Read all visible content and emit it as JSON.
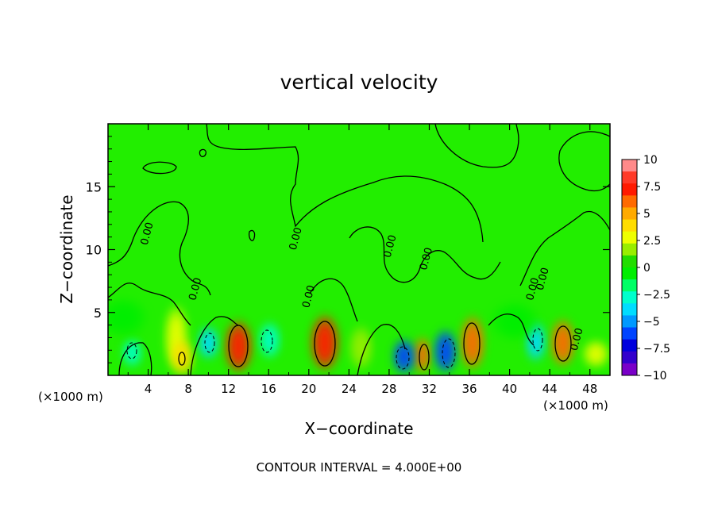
{
  "chart_data": {
    "type": "heatmap",
    "title": "vertical velocity",
    "xlabel": "X−coordinate",
    "ylabel": "Z−coordinate",
    "x_unit_left": "(×1000 m)",
    "x_unit_right": "(×1000 m)",
    "xlim": [
      0,
      50
    ],
    "ylim": [
      0,
      20
    ],
    "x_ticks": [
      4,
      8,
      12,
      16,
      20,
      24,
      28,
      32,
      36,
      40,
      44,
      48
    ],
    "y_ticks": [
      5,
      10,
      15
    ],
    "contour_interval_text": "CONTOUR INTERVAL = 4.000E+00",
    "contour_labels": [
      {
        "text": "0.00",
        "x": 4.2,
        "y": 11.2
      },
      {
        "text": "0.00",
        "x": 9.0,
        "y": 6.8
      },
      {
        "text": "0.00",
        "x": 19.0,
        "y": 10.8
      },
      {
        "text": "0.00",
        "x": 20.3,
        "y": 6.2
      },
      {
        "text": "0.00",
        "x": 28.4,
        "y": 10.2
      },
      {
        "text": "0.00",
        "x": 32.0,
        "y": 9.2
      },
      {
        "text": "0.00",
        "x": 42.6,
        "y": 6.8
      },
      {
        "text": "0.00",
        "x": 43.6,
        "y": 7.6
      },
      {
        "text": "0.00",
        "x": 47.0,
        "y": 2.8
      }
    ],
    "colorbar": {
      "ticks": [
        "10",
        "7.5",
        "5",
        "2.5",
        "0",
        "−2.5",
        "−5",
        "−7.5",
        "−10"
      ],
      "range": [
        -10,
        10
      ],
      "colors": [
        "#ff8a8a",
        "#ff3a28",
        "#ff1a00",
        "#ff6a00",
        "#ffaa00",
        "#ffdd00",
        "#eeff00",
        "#99ee00",
        "#22dd00",
        "#00ee00",
        "#00ff66",
        "#00ffcc",
        "#00ddff",
        "#0099ff",
        "#0044ff",
        "#0000dd",
        "#3300cc",
        "#7a00c8"
      ]
    },
    "cells": [
      {
        "x": 6.8,
        "y": 3.0,
        "w": 1.4,
        "h": 3.6,
        "v": 3
      },
      {
        "x": 7.4,
        "y": 1.4,
        "w": 1.4,
        "h": 2.0,
        "v": 4
      },
      {
        "x": 13.0,
        "y": 2.3,
        "w": 1.7,
        "h": 2.9,
        "v": 8
      },
      {
        "x": 21.6,
        "y": 2.6,
        "w": 1.8,
        "h": 3.1,
        "v": 8
      },
      {
        "x": 36.3,
        "y": 2.6,
        "w": 1.5,
        "h": 3.0,
        "v": 7
      },
      {
        "x": 31.3,
        "y": 1.6,
        "w": 1.0,
        "h": 2.0,
        "v": 6
      },
      {
        "x": 45.3,
        "y": 2.6,
        "w": 1.5,
        "h": 2.6,
        "v": 6
      },
      {
        "x": 48.6,
        "y": 1.7,
        "w": 1.6,
        "h": 1.4,
        "v": 3
      },
      {
        "x": 25.2,
        "y": 2.2,
        "w": 1.4,
        "h": 2.4,
        "v": 2
      },
      {
        "x": 2.4,
        "y": 1.8,
        "w": 1.2,
        "h": 1.5,
        "v": -3
      },
      {
        "x": 10.0,
        "y": 2.6,
        "w": 1.2,
        "h": 1.8,
        "v": -4
      },
      {
        "x": 16.1,
        "y": 2.8,
        "w": 1.3,
        "h": 2.0,
        "v": -3
      },
      {
        "x": 29.5,
        "y": 1.5,
        "w": 1.4,
        "h": 1.9,
        "v": -6
      },
      {
        "x": 33.6,
        "y": 1.9,
        "w": 1.4,
        "h": 2.4,
        "v": -6
      },
      {
        "x": 42.6,
        "y": 2.7,
        "w": 1.2,
        "h": 2.2,
        "v": -4
      },
      {
        "x": 1.5,
        "y": 4.6,
        "w": 3.0,
        "h": 2.0,
        "v": -1
      },
      {
        "x": 40.5,
        "y": 4.3,
        "w": 3.0,
        "h": 2.0,
        "v": -1
      }
    ]
  }
}
